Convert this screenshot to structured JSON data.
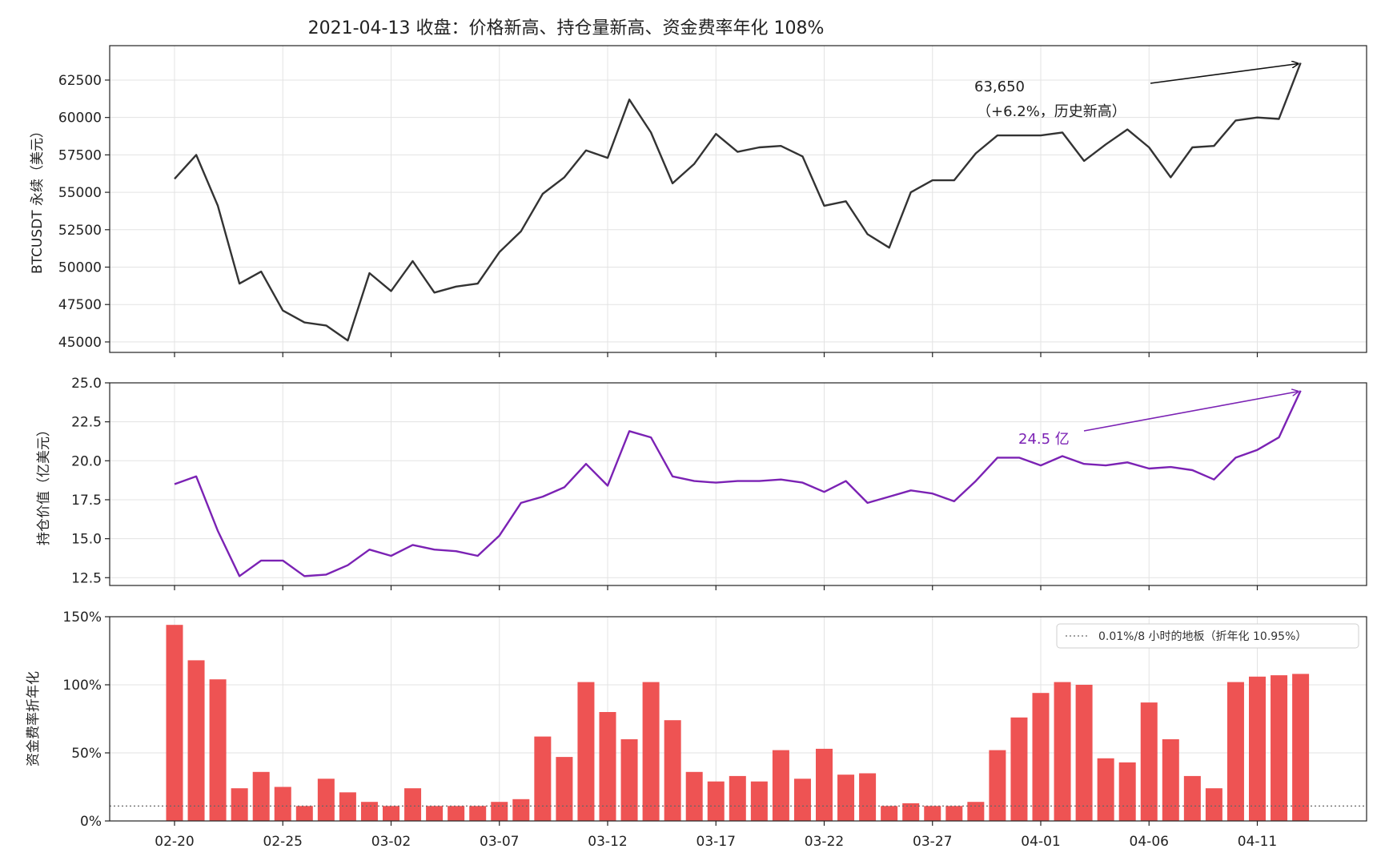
{
  "title": "2021-04-13 收盘：价格新高、持仓量新高、资金费率年化 108%",
  "chart_data": [
    {
      "type": "line",
      "ylabel": "BTCUSDT 永续（美元）",
      "ylim": [
        44300,
        64800
      ],
      "yticks": [
        45000,
        47500,
        50000,
        52500,
        55000,
        57500,
        60000,
        62500
      ],
      "grid": true,
      "color": "#333333",
      "annotation": {
        "line1": "63,650",
        "line2": "（+6.2%，历史新高）",
        "target_index": 52
      },
      "values": [
        55900,
        57500,
        54100,
        48900,
        49700,
        47100,
        46300,
        46100,
        45100,
        49600,
        48400,
        50400,
        48300,
        48700,
        48900,
        51000,
        52400,
        54900,
        56000,
        57800,
        57300,
        61200,
        59000,
        55600,
        56900,
        58900,
        57700,
        58000,
        58100,
        57400,
        54100,
        54400,
        52200,
        51300,
        55000,
        55800,
        55800,
        57600,
        58800,
        58800,
        58800,
        59000,
        57100,
        58200,
        59200,
        58000,
        56000,
        58000,
        58100,
        59800,
        60000,
        59900,
        63650
      ]
    },
    {
      "type": "line",
      "ylabel": "持仓价值（亿美元）",
      "ylim": [
        12.0,
        25.0
      ],
      "yticks": [
        12.5,
        15.0,
        17.5,
        20.0,
        22.5,
        25.0
      ],
      "grid": true,
      "color": "#7b22b4",
      "annotation": {
        "label": "24.5 亿",
        "target_index": 52
      },
      "values": [
        18.5,
        19.0,
        15.5,
        12.6,
        13.6,
        13.6,
        12.6,
        12.7,
        13.3,
        14.3,
        13.9,
        14.6,
        14.3,
        14.2,
        13.9,
        15.2,
        17.3,
        17.7,
        18.3,
        19.8,
        18.4,
        21.9,
        21.5,
        19.0,
        18.7,
        18.6,
        18.7,
        18.7,
        18.8,
        18.6,
        18.0,
        18.7,
        17.3,
        17.7,
        18.1,
        17.9,
        17.4,
        18.7,
        20.2,
        20.2,
        19.7,
        20.3,
        19.8,
        19.7,
        19.9,
        19.5,
        19.6,
        19.4,
        18.8,
        20.2,
        20.7,
        21.5,
        24.5
      ]
    },
    {
      "type": "bar",
      "ylabel": "资金费率折年化",
      "ylim": [
        0,
        150
      ],
      "yticks": [
        0,
        50,
        100,
        150
      ],
      "ytick_labels": [
        "0%",
        "50%",
        "100%",
        "150%"
      ],
      "grid": true,
      "color": "#ee5353",
      "reference_line": {
        "value": 10.95,
        "label": "0.01%/8 小时的地板（折年化 10.95%）",
        "style": "dotted"
      },
      "legend_position": "top-right",
      "values": [
        144,
        118,
        104,
        24,
        36,
        25,
        11,
        31,
        21,
        14,
        11,
        24,
        11,
        11,
        11,
        14,
        16,
        62,
        47,
        102,
        80,
        60,
        102,
        74,
        36,
        29,
        33,
        29,
        52,
        31,
        53,
        34,
        35,
        11,
        13,
        11,
        11,
        14,
        52,
        76,
        94,
        102,
        100,
        46,
        43,
        87,
        60,
        33,
        24,
        102,
        106,
        107,
        108
      ]
    }
  ],
  "x_axis": {
    "tick_labels": [
      "02-20",
      "02-25",
      "03-02",
      "03-07",
      "03-12",
      "03-17",
      "03-22",
      "03-27",
      "04-01",
      "04-06",
      "04-11"
    ],
    "tick_indices": [
      0,
      5,
      10,
      15,
      20,
      25,
      30,
      35,
      40,
      45,
      50
    ]
  }
}
